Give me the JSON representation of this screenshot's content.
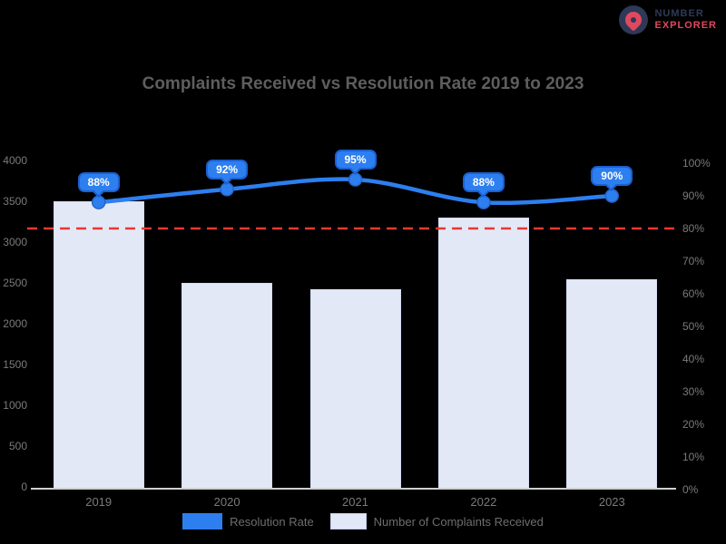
{
  "logo": {
    "line1": "NUMBER",
    "line2": "EXPLORER"
  },
  "title": "Complaints Received vs Resolution Rate 2019 to 2023",
  "chart_data": {
    "type": "bar",
    "subtype": "combo bar+line, dual axis",
    "title": "Complaints Received vs Resolution Rate 2019 to 2023",
    "categories": [
      "2019",
      "2020",
      "2021",
      "2022",
      "2023"
    ],
    "series": [
      {
        "name": "Resolution Rate",
        "type": "line",
        "axis": "right",
        "unit": "%",
        "values": [
          88,
          92,
          95,
          88,
          90
        ],
        "point_labels": [
          "88%",
          "92%",
          "95%",
          "88%",
          "90%"
        ],
        "color": "#2d7ff0"
      },
      {
        "name": "Number of Complaints Received",
        "type": "bar",
        "axis": "left",
        "values": [
          3500,
          2500,
          2420,
          3300,
          2550
        ],
        "color": "#e3e8f7"
      }
    ],
    "left_axis": {
      "min": 0,
      "max": 4000,
      "step": 500,
      "ticks": [
        "4000",
        "3500",
        "3000",
        "2500",
        "2000",
        "1500",
        "1000",
        "500",
        "0"
      ]
    },
    "right_axis": {
      "min": 0,
      "max": 100,
      "step": 10,
      "ticks": [
        "100%",
        "90%",
        "80%",
        "70%",
        "60%",
        "50%",
        "40%",
        "30%",
        "20%",
        "10%",
        "0%"
      ]
    },
    "target_line": {
      "axis": "right",
      "value": 80,
      "color": "#e53935",
      "style": "dashed"
    },
    "grid": false,
    "legend_position": "bottom"
  },
  "legend": {
    "line_label": "Resolution Rate",
    "bar_label": "Number of Complaints Received"
  }
}
